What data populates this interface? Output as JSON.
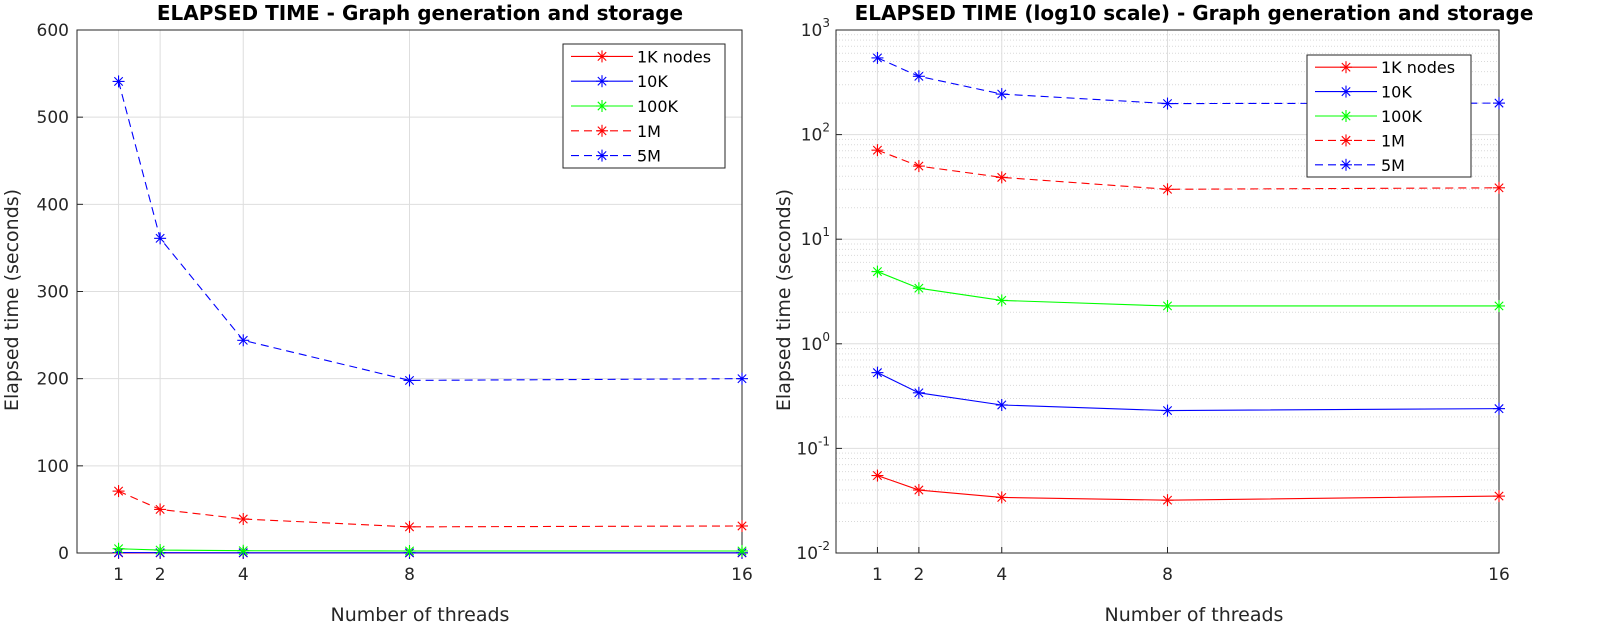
{
  "chart_data": [
    {
      "type": "line",
      "title": "ELAPSED TIME - Graph generation and storage",
      "xlabel": "Number of threads",
      "ylabel": "Elapsed time (seconds)",
      "yscale": "linear",
      "xlim": [
        0,
        16
      ],
      "ylim": [
        0,
        600
      ],
      "x": [
        1,
        2,
        4,
        8,
        16
      ],
      "xticks": [
        1,
        2,
        4,
        8,
        16
      ],
      "yticks": [
        0,
        100,
        200,
        300,
        400,
        500,
        600
      ],
      "grid": true,
      "legend_position": "top-right",
      "series": [
        {
          "name": "1K nodes",
          "color": "#ff0000",
          "style": "solid",
          "values": [
            0.055,
            0.04,
            0.034,
            0.032,
            0.035
          ]
        },
        {
          "name": "10K",
          "color": "#0000ff",
          "style": "solid",
          "values": [
            0.53,
            0.34,
            0.26,
            0.23,
            0.24
          ]
        },
        {
          "name": "100K",
          "color": "#00ff00",
          "style": "solid",
          "values": [
            4.9,
            3.4,
            2.6,
            2.3,
            2.3
          ]
        },
        {
          "name": "1M",
          "color": "#ff0000",
          "style": "dashed",
          "values": [
            71,
            50,
            39,
            30,
            31
          ]
        },
        {
          "name": "5M",
          "color": "#0000ff",
          "style": "dashed",
          "values": [
            541,
            361,
            244,
            198,
            200
          ]
        }
      ]
    },
    {
      "type": "line",
      "title": "ELAPSED TIME (log10 scale) - Graph generation and storage",
      "xlabel": "Number of threads",
      "ylabel": "Elapsed time (seconds)",
      "yscale": "log",
      "xlim": [
        0,
        16
      ],
      "ylim": [
        0.01,
        1000
      ],
      "x": [
        1,
        2,
        4,
        8,
        16
      ],
      "xticks": [
        1,
        2,
        4,
        8,
        16
      ],
      "yticks": [
        {
          "base": "10",
          "exp": "-2",
          "value": 0.01
        },
        {
          "base": "10",
          "exp": "-1",
          "value": 0.1
        },
        {
          "base": "10",
          "exp": "0",
          "value": 1
        },
        {
          "base": "10",
          "exp": "1",
          "value": 10
        },
        {
          "base": "10",
          "exp": "2",
          "value": 100
        },
        {
          "base": "10",
          "exp": "3",
          "value": 1000
        }
      ],
      "grid": true,
      "minor_grid": true,
      "legend_position": "top-right",
      "series": [
        {
          "name": "1K nodes",
          "color": "#ff0000",
          "style": "solid",
          "values": [
            0.055,
            0.04,
            0.034,
            0.032,
            0.035
          ]
        },
        {
          "name": "10K",
          "color": "#0000ff",
          "style": "solid",
          "values": [
            0.53,
            0.34,
            0.26,
            0.23,
            0.24
          ]
        },
        {
          "name": "100K",
          "color": "#00ff00",
          "style": "solid",
          "values": [
            4.9,
            3.4,
            2.6,
            2.3,
            2.3
          ]
        },
        {
          "name": "1M",
          "color": "#ff0000",
          "style": "dashed",
          "values": [
            71,
            50,
            39,
            30,
            31
          ]
        },
        {
          "name": "5M",
          "color": "#0000ff",
          "style": "dashed",
          "values": [
            541,
            361,
            244,
            198,
            200
          ]
        }
      ]
    }
  ]
}
